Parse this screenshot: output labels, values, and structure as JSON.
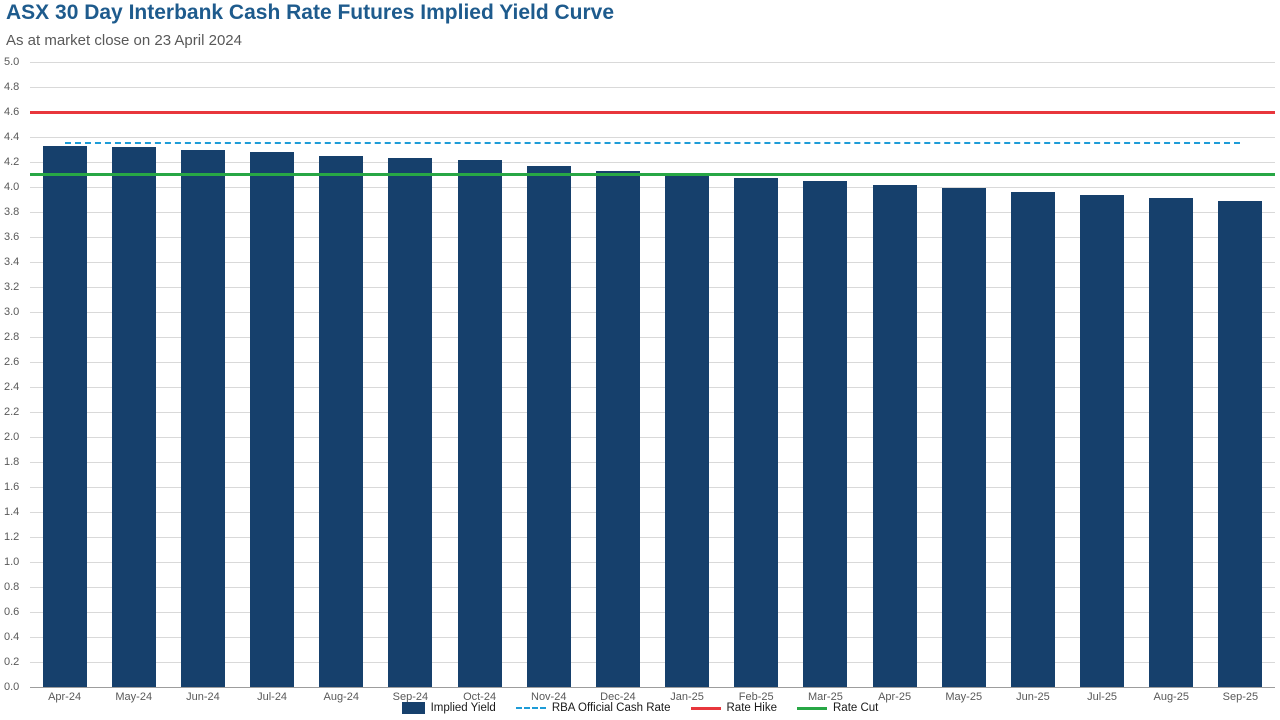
{
  "chart_data": {
    "type": "bar",
    "title": "ASX 30 Day Interbank Cash Rate Futures Implied Yield Curve",
    "subtitle": "As at market close on 23 April 2024",
    "categories": [
      "Apr-24",
      "May-24",
      "Jun-24",
      "Jul-24",
      "Aug-24",
      "Sep-24",
      "Oct-24",
      "Nov-24",
      "Dec-24",
      "Jan-25",
      "Feb-25",
      "Mar-25",
      "Apr-25",
      "May-25",
      "Jun-25",
      "Jul-25",
      "Aug-25",
      "Sep-25"
    ],
    "series": [
      {
        "name": "Implied Yield",
        "color": "#16406C",
        "values": [
          4.33,
          4.32,
          4.3,
          4.28,
          4.25,
          4.23,
          4.22,
          4.17,
          4.13,
          4.11,
          4.07,
          4.05,
          4.02,
          3.99,
          3.96,
          3.94,
          3.91,
          3.89
        ]
      }
    ],
    "reference_lines": [
      {
        "name": "RBA Official Cash Rate",
        "value": 4.35,
        "style": "dashed",
        "color": "#1E9CD7",
        "span": "categories"
      },
      {
        "name": "Rate Hike",
        "value": 4.6,
        "style": "solid",
        "color": "#E8363C",
        "span": "full"
      },
      {
        "name": "Rate Cut",
        "value": 4.1,
        "style": "solid",
        "color": "#28A745",
        "span": "full"
      }
    ],
    "ylim": [
      0,
      5
    ],
    "ytick_step": 0.2,
    "grid": "horizontal",
    "legend_position": "bottom"
  }
}
